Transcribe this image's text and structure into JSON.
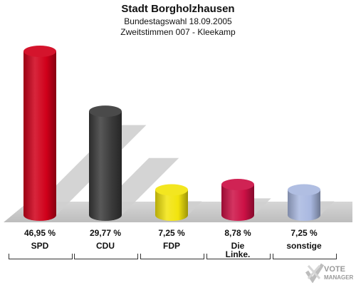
{
  "header": {
    "title": "Stadt Borgholzhausen",
    "subtitle1": "Bundestagswahl 18.09.2005",
    "subtitle2": "Zweitstimmen 007 - Kleekamp"
  },
  "chart_data": {
    "type": "bar",
    "title": "Stadt Borgholzhausen",
    "categories": [
      "SPD",
      "CDU",
      "FDP",
      "Die Linke.",
      "sonstige"
    ],
    "category_lines": [
      [
        "SPD"
      ],
      [
        "CDU"
      ],
      [
        "FDP"
      ],
      [
        "Die",
        "Linke."
      ],
      [
        "sonstige"
      ]
    ],
    "values": [
      46.95,
      29.77,
      7.25,
      8.78,
      7.25
    ],
    "value_labels": [
      "46,95 %",
      "29,77 %",
      "7,25 %",
      "8,78 %",
      "7,25 %"
    ],
    "colors": [
      "#d0001a",
      "#3a3a3a",
      "#f2e40d",
      "#cc1045",
      "#a9b8e0"
    ],
    "ylim": [
      0,
      50
    ],
    "grid": false,
    "legend": "none"
  },
  "logo": {
    "line1": "VOTE",
    "line2": "MANAGER"
  }
}
